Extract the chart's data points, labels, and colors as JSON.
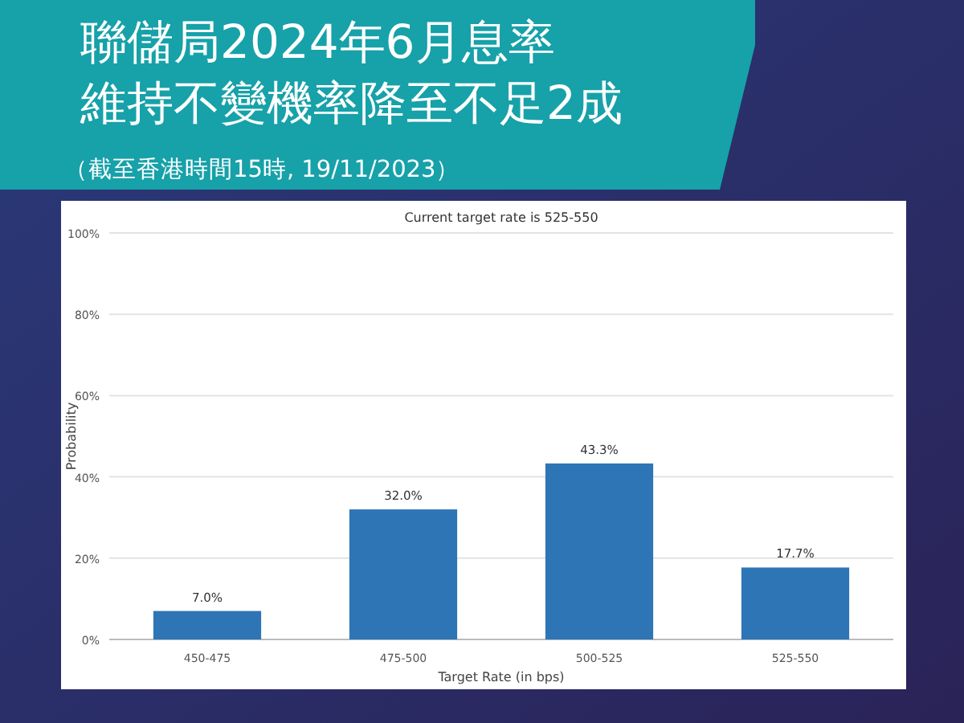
{
  "chart_data": {
    "type": "bar",
    "title": "聯儲局2024年6月息率",
    "subtitle": "維持不變機率降至不足2成",
    "annotations": [
      "（截至香港時間15時, 19/11/2023）",
      "Current target rate is 525-550"
    ],
    "categories": [
      "450-475",
      "475-500",
      "500-525",
      "525-550"
    ],
    "values": [
      7.0,
      32.0,
      43.3,
      17.7
    ],
    "value_labels": [
      "7.0%",
      "32.0%",
      "43.3%",
      "17.7%"
    ],
    "color": "#2e75b6",
    "xlabel": "Target Rate (in bps)",
    "ylabel": "Probability",
    "ylim": [
      0,
      100
    ],
    "yticks": [
      {
        "value": 0,
        "label": "0%"
      },
      {
        "value": 20,
        "label": "20%"
      },
      {
        "value": 40,
        "label": "40%"
      },
      {
        "value": 60,
        "label": "60%"
      },
      {
        "value": 80,
        "label": "80%"
      },
      {
        "value": 100,
        "label": "100%"
      }
    ],
    "grid": "y"
  }
}
